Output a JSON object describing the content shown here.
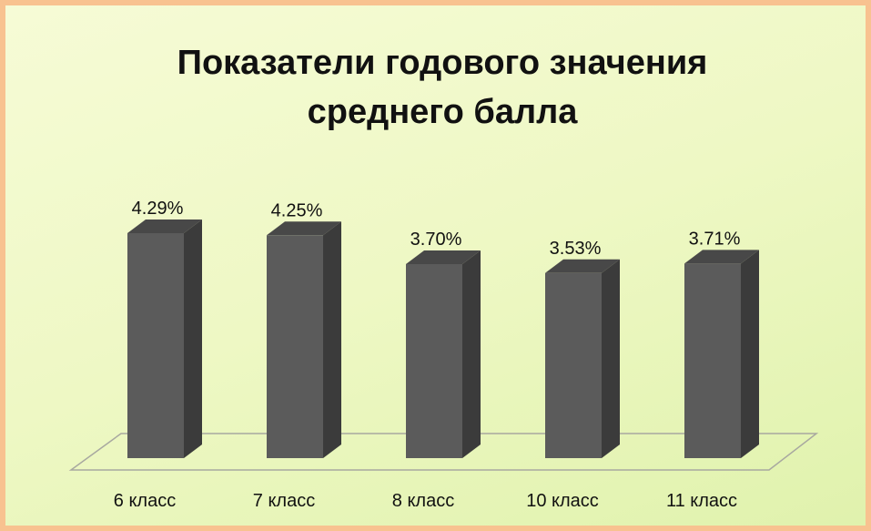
{
  "chart_data": {
    "type": "bar3d",
    "title": "Показатели годового значения среднего балла",
    "categories": [
      "6 класс",
      "7 класс",
      "8 класс",
      "10 класс",
      "11 класс"
    ],
    "values": [
      4.29,
      4.25,
      3.7,
      3.53,
      3.71
    ],
    "value_labels": [
      "4.29%",
      "4.25%",
      "3.70%",
      "3.53%",
      "3.71%"
    ],
    "color": "#5b5b5b"
  }
}
